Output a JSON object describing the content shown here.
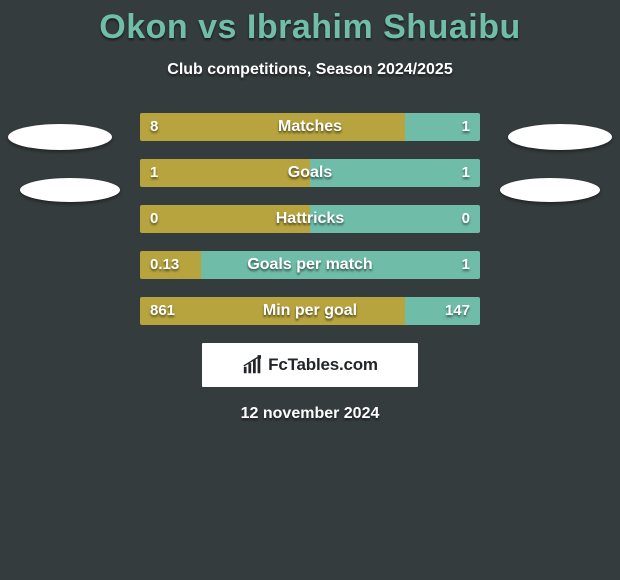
{
  "title": "Okon vs Ibrahim Shuaibu",
  "subtitle": "Club competitions, Season 2024/2025",
  "colors": {
    "background": "#353c3e",
    "title": "#70bda8",
    "left_bar": "#b7a43e",
    "right_bar": "#6fbda8",
    "text": "#ffffff",
    "brand_bg": "#ffffff",
    "brand_text": "#232628"
  },
  "rows": [
    {
      "label": "Matches",
      "left": "8",
      "right": "1",
      "left_pct": 78,
      "right_pct": 22
    },
    {
      "label": "Goals",
      "left": "1",
      "right": "1",
      "left_pct": 50,
      "right_pct": 50
    },
    {
      "label": "Hattricks",
      "left": "0",
      "right": "0",
      "left_pct": 50,
      "right_pct": 50
    },
    {
      "label": "Goals per match",
      "left": "0.13",
      "right": "1",
      "left_pct": 18,
      "right_pct": 82
    },
    {
      "label": "Min per goal",
      "left": "861",
      "right": "147",
      "left_pct": 78,
      "right_pct": 22
    }
  ],
  "brand": {
    "text": "FcTables.com"
  },
  "date": "12 november 2024"
}
